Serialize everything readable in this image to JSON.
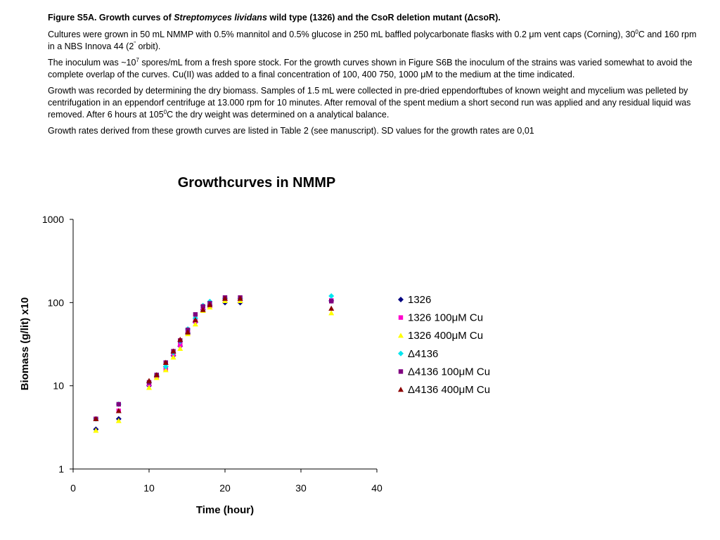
{
  "caption": {
    "title_prefix": "Figure S5A. Growth curves of ",
    "title_italic": "Streptomyces lividans",
    "title_suffix": " wild type (1326) and the CsoR deletion mutant (ΔcsoR).",
    "p1_a": "Cultures were grown in 50 mL NMMP with 0.5% mannitol and 0.5% glucose in 250 mL baffled polycarbonate flasks with 0.2 μm vent caps (Corning), 30",
    "p1_sup": "0",
    "p1_b": "C and 160 rpm in a NBS Innova 44 (2",
    "p1_sup2": "”",
    "p1_c": " orbit).",
    "p2_a": "The inoculum was ~10",
    "p2_sup": "7",
    "p2_b": " spores/mL from a fresh spore stock. For the growth curves shown in Figure S6B the inoculum of the strains was varied somewhat to avoid the complete overlap of the curves. Cu(II) was added to a final concentration of 100, 400 750, 1000 μM to the medium at the time indicated.",
    "p3_a": "Growth was recorded by determining the dry biomass. Samples of 1.5 mL were collected in pre-dried eppendorftubes of known weight and mycelium was pelleted by centrifugation in an eppendorf centrifuge at 13.000 rpm for 10 minutes. After removal of the spent medium a short second run was applied and any residual liquid was removed. After 6 hours at 105",
    "p3_sup": "0",
    "p3_b": "C the dry weight was determined on a analytical balance.",
    "p4": "Growth rates derived from these growth curves are listed in Table 2 (see manuscript). SD values for the growth rates are 0,01"
  },
  "chart_data": {
    "type": "scatter",
    "title": "Growthcurves in NMMP",
    "xlabel": "Time (hour)",
    "ylabel": "Biomass (g/lit) x10",
    "xlim": [
      0,
      40
    ],
    "ylim": [
      1,
      1000
    ],
    "yscale": "log",
    "xticks": [
      0,
      10,
      20,
      30,
      40
    ],
    "yticks": [
      1,
      10,
      100,
      1000
    ],
    "xtick_labels": [
      "0",
      "10",
      "20",
      "30",
      "40"
    ],
    "ytick_labels": [
      "1",
      "10",
      "100",
      "1000"
    ],
    "grid": false,
    "legend_position": "right",
    "series": [
      {
        "name": "1326",
        "marker": "diamond",
        "color": "#000080",
        "x": [
          3,
          6,
          10,
          11,
          12.2,
          13.2,
          14.1,
          15.1,
          16.1,
          17.1,
          18,
          20,
          22,
          34
        ],
        "y": [
          3,
          4,
          10,
          13,
          17,
          23,
          30,
          43,
          58,
          82,
          93,
          100,
          100,
          105
        ]
      },
      {
        "name": "1326 100μM Cu",
        "marker": "square",
        "color": "#ff00cc",
        "x": [
          3,
          6,
          10,
          11,
          12.2,
          13.2,
          14.1,
          15.1,
          16.1,
          17.1,
          18,
          20,
          22,
          34
        ],
        "y": [
          4,
          5,
          10.5,
          13,
          16,
          24,
          31,
          46,
          60,
          87,
          92,
          110,
          110,
          106
        ]
      },
      {
        "name": "1326 400μM Cu",
        "marker": "triangle",
        "color": "#ffff00",
        "x": [
          3,
          6,
          10,
          11,
          12.2,
          13.2,
          14.1,
          15.1,
          16.1,
          17.1,
          18,
          20,
          22,
          34
        ],
        "y": [
          2.9,
          3.8,
          9.5,
          12.5,
          15.5,
          22,
          28,
          42,
          55,
          80,
          88,
          105,
          105,
          75
        ]
      },
      {
        "name": "Δ4136",
        "marker": "diamond",
        "color": "#00e5ee",
        "x": [
          3,
          6,
          10,
          11,
          12.2,
          13.2,
          14.1,
          15.1,
          16.1,
          17.1,
          18,
          20,
          22,
          34
        ],
        "y": [
          4,
          6,
          11,
          13.5,
          17,
          25,
          34,
          48,
          65,
          92,
          103,
          112,
          112,
          120
        ]
      },
      {
        "name": "Δ4136 100μM Cu",
        "marker": "square",
        "color": "#800080",
        "x": [
          3,
          6,
          10,
          11,
          12.2,
          13.2,
          14.1,
          15.1,
          16.1,
          17.1,
          18,
          20,
          22,
          34
        ],
        "y": [
          4,
          6,
          11,
          13.5,
          19,
          26,
          35,
          47,
          72,
          90,
          98,
          115,
          115,
          104
        ]
      },
      {
        "name": "Δ4136 400μM Cu",
        "marker": "triangle",
        "color": "#8b0000",
        "x": [
          3,
          6,
          10,
          11,
          12.2,
          13.2,
          14.1,
          15.1,
          16.1,
          17.1,
          18,
          20,
          22,
          34
        ],
        "y": [
          4,
          5,
          11.5,
          13.5,
          19,
          26,
          36,
          44,
          62,
          82,
          94,
          112,
          112,
          85
        ]
      }
    ]
  }
}
